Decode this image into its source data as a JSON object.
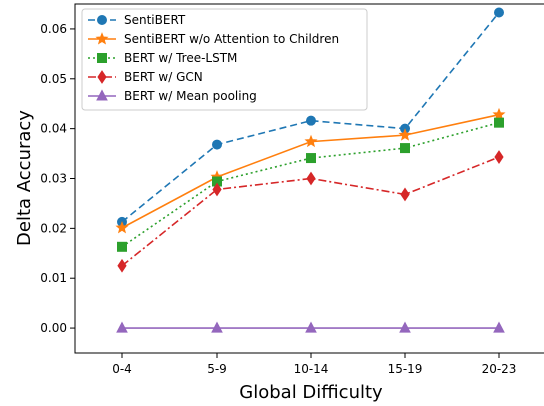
{
  "chart_data": {
    "type": "line",
    "title": "",
    "xlabel": "Global Difficulty",
    "ylabel": "Delta Accuracy",
    "categories": [
      "0-4",
      "5-9",
      "10-14",
      "15-19",
      "20-23"
    ],
    "yticks": [
      "0.00",
      "0.01",
      "0.02",
      "0.03",
      "0.04",
      "0.05",
      "0.06"
    ],
    "ylim": [
      -0.005,
      0.065
    ],
    "grid": false,
    "legend_position": "top-left",
    "series": [
      {
        "name": "SentiBERT",
        "values": [
          0.0213,
          0.0368,
          0.0416,
          0.04,
          0.0633
        ],
        "color": "#1f77b4",
        "marker": "circle",
        "dash": "dashed"
      },
      {
        "name": "SentiBERT w/o Attention to Children",
        "values": [
          0.0201,
          0.0303,
          0.0374,
          0.0387,
          0.0428
        ],
        "color": "#ff7f0e",
        "marker": "star",
        "dash": "solid"
      },
      {
        "name": "BERT w/ Tree-LSTM",
        "values": [
          0.0163,
          0.0294,
          0.0341,
          0.0361,
          0.0412
        ],
        "color": "#2ca02c",
        "marker": "square",
        "dash": "dotted"
      },
      {
        "name": "BERT w/ GCN",
        "values": [
          0.0125,
          0.0278,
          0.03,
          0.0268,
          0.0343
        ],
        "color": "#d62728",
        "marker": "diamond",
        "dash": "dashdot"
      },
      {
        "name": "BERT w/ Mean pooling",
        "values": [
          0.0,
          0.0,
          0.0,
          0.0,
          0.0
        ],
        "color": "#9467bd",
        "marker": "triangle",
        "dash": "solid"
      }
    ]
  }
}
